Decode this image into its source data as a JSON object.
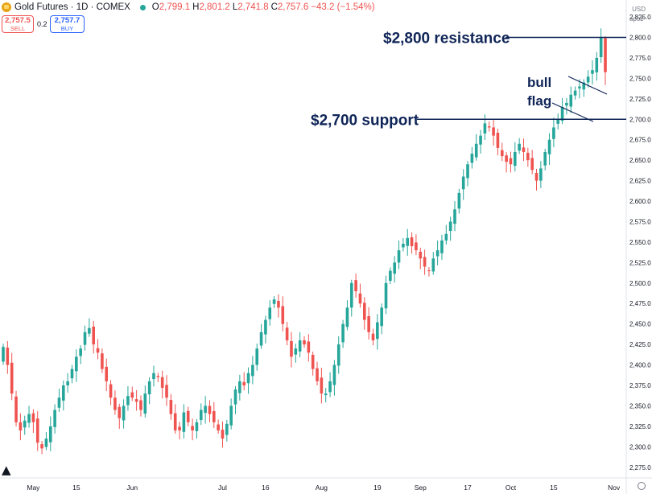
{
  "header": {
    "title": "Gold Futures · 1D · COMEX",
    "open_label": "O",
    "open": "2,799.1",
    "high_label": "H",
    "high": "2,801.2",
    "low_label": "L",
    "low": "2,741.8",
    "close_label": "C",
    "close": "2,757.6",
    "change": "−43.2 (−1.54%)"
  },
  "trade": {
    "sell_price": "2,757.5",
    "sell_label": "SELL",
    "spread": "0.2",
    "buy_price": "2,757.7",
    "buy_label": "BUY"
  },
  "axis_top": {
    "mode": "apoz",
    "currency": "USD"
  },
  "colors": {
    "up": "#26a69a",
    "down": "#ef5350",
    "annotation": "#0f2557",
    "axis_text": "#131722"
  },
  "chart_data": {
    "type": "candlestick",
    "title": "Gold Futures · 1D · COMEX",
    "ylim": [
      2262,
      2828
    ],
    "y_ticks": [
      2275,
      2300,
      2325,
      2350,
      2375,
      2400,
      2425,
      2450,
      2475,
      2500,
      2525,
      2550,
      2575,
      2600,
      2625,
      2650,
      2675,
      2700,
      2725,
      2750,
      2775,
      2800,
      2825
    ],
    "y_tick_labels": [
      "2,275.0",
      "2,300.0",
      "2,325.0",
      "2,350.0",
      "2,375.0",
      "2,400.0",
      "2,425.0",
      "2,450.0",
      "2,475.0",
      "2,500.0",
      "2,525.0",
      "2,550.0",
      "2,575.0",
      "2,600.0",
      "2,625.0",
      "2,650.0",
      "2,675.0",
      "2,700.0",
      "2,725.0",
      "2,750.0",
      "2,775.0",
      "2,800.0",
      "2,825.0"
    ],
    "x_ticks": [
      {
        "label": "May",
        "index": 7
      },
      {
        "label": "15",
        "index": 17
      },
      {
        "label": "Jun",
        "index": 30
      },
      {
        "label": "Jul",
        "index": 51
      },
      {
        "label": "16",
        "index": 61
      },
      {
        "label": "Aug",
        "index": 74
      },
      {
        "label": "19",
        "index": 87
      },
      {
        "label": "Sep",
        "index": 97
      },
      {
        "label": "17",
        "index": 108
      },
      {
        "label": "Oct",
        "index": 118
      },
      {
        "label": "15",
        "index": 128
      },
      {
        "label": "Nov",
        "index": 142
      }
    ],
    "closes": [
      2422,
      2400,
      2365,
      2330,
      2320,
      2332,
      2340,
      2330,
      2305,
      2298,
      2310,
      2325,
      2345,
      2360,
      2375,
      2380,
      2395,
      2410,
      2420,
      2440,
      2445,
      2425,
      2415,
      2395,
      2380,
      2360,
      2345,
      2335,
      2350,
      2362,
      2360,
      2355,
      2345,
      2365,
      2380,
      2390,
      2385,
      2372,
      2360,
      2340,
      2320,
      2320,
      2342,
      2330,
      2320,
      2330,
      2345,
      2350,
      2340,
      2330,
      2320,
      2310,
      2328,
      2350,
      2370,
      2380,
      2375,
      2390,
      2400,
      2420,
      2440,
      2455,
      2470,
      2480,
      2470,
      2450,
      2430,
      2410,
      2420,
      2430,
      2425,
      2415,
      2395,
      2380,
      2365,
      2365,
      2380,
      2400,
      2425,
      2450,
      2470,
      2500,
      2490,
      2475,
      2455,
      2440,
      2430,
      2452,
      2470,
      2500,
      2515,
      2525,
      2540,
      2548,
      2555,
      2545,
      2540,
      2530,
      2520,
      2515,
      2530,
      2540,
      2552,
      2560,
      2575,
      2590,
      2610,
      2630,
      2645,
      2658,
      2670,
      2680,
      2695,
      2690,
      2680,
      2665,
      2655,
      2648,
      2645,
      2660,
      2670,
      2660,
      2650,
      2638,
      2625,
      2640,
      2660,
      2675,
      2690,
      2700,
      2715,
      2720,
      2730,
      2735,
      2740,
      2745,
      2752,
      2760,
      2775,
      2800,
      2757.6
    ],
    "series_annotations": [
      {
        "text": "$2,800 resistance",
        "type": "horizontal_line",
        "value": 2800
      },
      {
        "text": "$2,700 support",
        "type": "horizontal_line",
        "value": 2700
      },
      {
        "text": "bull",
        "type": "label"
      },
      {
        "text": "flag",
        "type": "label"
      }
    ]
  }
}
